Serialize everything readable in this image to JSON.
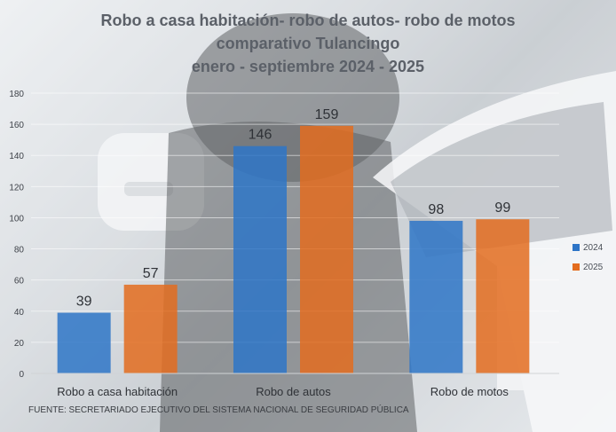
{
  "chart_data": {
    "type": "bar",
    "title": "Robo a casa habitación-  robo de autos- robo de motos",
    "subtitle": "comparativo  Tulancingo",
    "period": "enero - septiembre  2024 - 2025",
    "categories": [
      "Robo a casa habitación",
      "Robo de autos",
      "Robo de motos"
    ],
    "series": [
      {
        "name": "2024",
        "values": [
          39,
          146,
          98
        ],
        "color": "#2e75c7"
      },
      {
        "name": "2025",
        "values": [
          57,
          159,
          99
        ],
        "color": "#e36c1e"
      }
    ],
    "ylim": [
      0,
      180
    ],
    "yticks": [
      0,
      20,
      40,
      60,
      80,
      100,
      120,
      140,
      160,
      180
    ],
    "grid": true,
    "legend": "right",
    "source": "FUENTE: SECRETARIADO EJECUTIVO DEL SISTEMA NACIONAL DE SEGURIDAD PÚBLICA"
  }
}
